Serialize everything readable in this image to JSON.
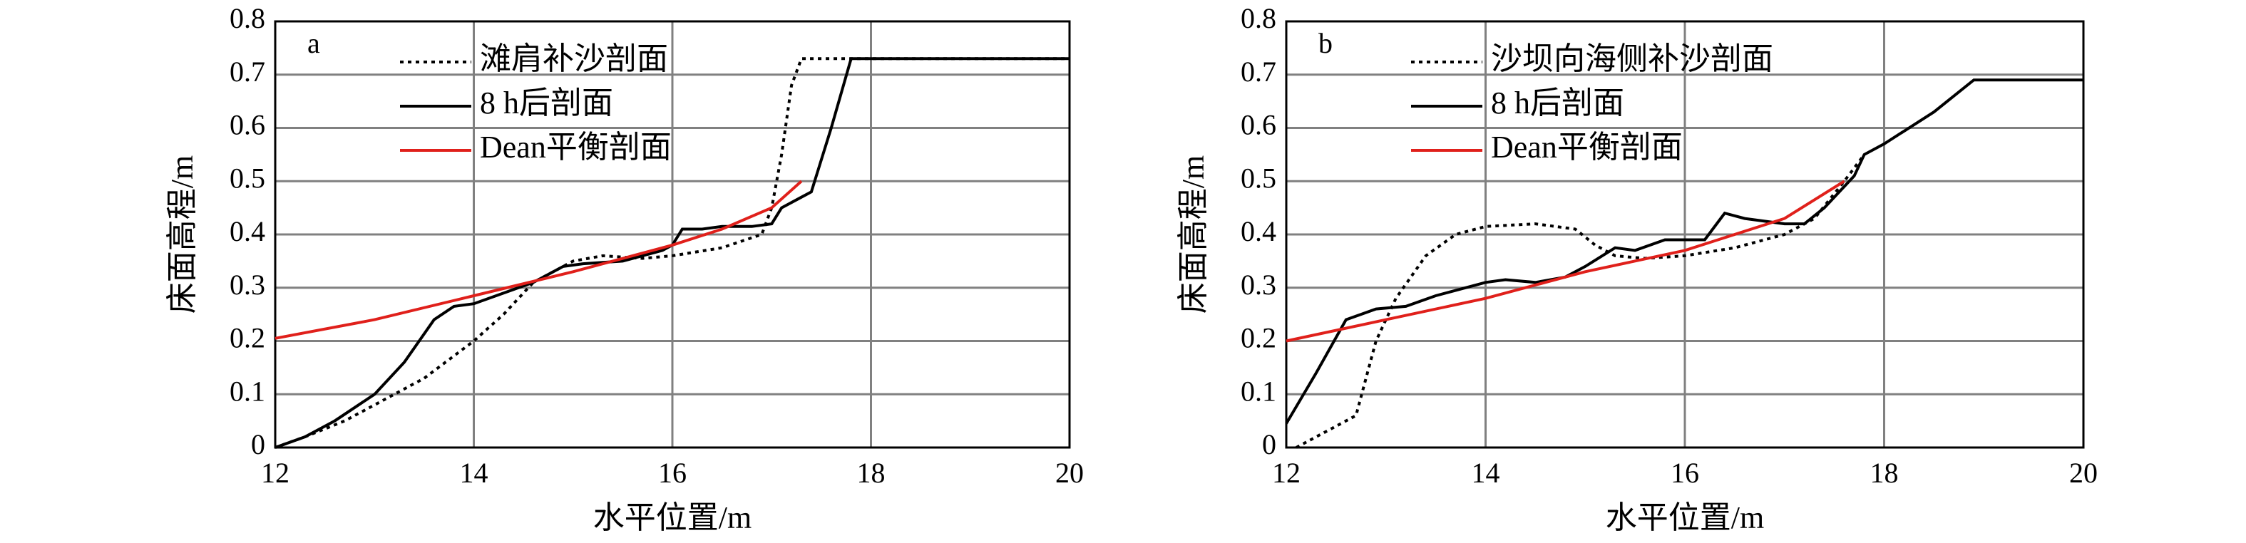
{
  "chart_data": [
    {
      "type": "line",
      "panel_label": "a",
      "xlabel": "水平位置/m",
      "ylabel": "床面高程/m",
      "xlim": [
        12,
        20
      ],
      "ylim": [
        0,
        0.8
      ],
      "xticks": [
        12,
        14,
        16,
        18,
        20
      ],
      "yticks": [
        0,
        0.1,
        0.2,
        0.3,
        0.4,
        0.5,
        0.6,
        0.7,
        0.8
      ],
      "grid": true,
      "series": [
        {
          "name": "滩肩补沙剖面",
          "color": "#000000",
          "dash": "dotted",
          "x": [
            12,
            12.3,
            12.7,
            13,
            13.5,
            14,
            14.3,
            14.6,
            15,
            15.3,
            15.7,
            16,
            16.5,
            16.9,
            17,
            17.1,
            17.2,
            17.3,
            20
          ],
          "values": [
            0,
            0.02,
            0.05,
            0.08,
            0.13,
            0.2,
            0.25,
            0.31,
            0.35,
            0.36,
            0.355,
            0.36,
            0.375,
            0.4,
            0.45,
            0.55,
            0.68,
            0.73,
            0.73
          ]
        },
        {
          "name": "8 h后剖面",
          "color": "#000000",
          "dash": "solid",
          "x": [
            12,
            12.3,
            12.6,
            13,
            13.3,
            13.6,
            13.8,
            14,
            14.3,
            14.6,
            14.9,
            15.1,
            15.5,
            15.9,
            16,
            16.1,
            16.3,
            16.5,
            16.8,
            17,
            17.1,
            17.3,
            17.4,
            17.6,
            17.8,
            20
          ],
          "values": [
            0,
            0.02,
            0.05,
            0.1,
            0.16,
            0.24,
            0.265,
            0.27,
            0.29,
            0.31,
            0.34,
            0.345,
            0.35,
            0.37,
            0.38,
            0.41,
            0.41,
            0.415,
            0.415,
            0.42,
            0.45,
            0.47,
            0.48,
            0.6,
            0.73,
            0.73
          ]
        },
        {
          "name": "Dean平衡剖面",
          "color": "#e0201b",
          "dash": "solid",
          "x": [
            12,
            13,
            14,
            15,
            16,
            16.5,
            17,
            17.3
          ],
          "values": [
            0.205,
            0.24,
            0.285,
            0.33,
            0.38,
            0.41,
            0.45,
            0.5
          ]
        }
      ]
    },
    {
      "type": "line",
      "panel_label": "b",
      "xlabel": "水平位置/m",
      "ylabel": "床面高程/m",
      "xlim": [
        12,
        20
      ],
      "ylim": [
        0,
        0.8
      ],
      "xticks": [
        12,
        14,
        16,
        18,
        20
      ],
      "yticks": [
        0,
        0.1,
        0.2,
        0.3,
        0.4,
        0.5,
        0.6,
        0.7,
        0.8
      ],
      "grid": true,
      "series": [
        {
          "name": "沙坝向海侧补沙剖面",
          "color": "#000000",
          "dash": "dotted",
          "x": [
            12.1,
            12.3,
            12.7,
            12.9,
            13.1,
            13.4,
            13.7,
            14,
            14.5,
            14.9,
            15.1,
            15.3,
            15.6,
            16,
            16.5,
            17,
            17.3,
            17.6,
            17.8
          ],
          "values": [
            0,
            0.02,
            0.06,
            0.2,
            0.28,
            0.36,
            0.4,
            0.415,
            0.42,
            0.41,
            0.38,
            0.36,
            0.355,
            0.36,
            0.375,
            0.4,
            0.43,
            0.5,
            0.55
          ]
        },
        {
          "name": "8 h后剖面",
          "color": "#000000",
          "dash": "solid",
          "x": [
            12,
            12.3,
            12.6,
            12.9,
            13.2,
            13.5,
            14,
            14.2,
            14.5,
            14.8,
            15,
            15.3,
            15.5,
            15.8,
            16.2,
            16.4,
            16.6,
            17,
            17.2,
            17.4,
            17.7,
            17.8,
            18,
            18.5,
            18.9,
            19.2,
            20
          ],
          "values": [
            0.045,
            0.14,
            0.24,
            0.26,
            0.265,
            0.285,
            0.31,
            0.315,
            0.31,
            0.32,
            0.34,
            0.375,
            0.37,
            0.39,
            0.39,
            0.44,
            0.43,
            0.42,
            0.42,
            0.45,
            0.51,
            0.55,
            0.57,
            0.63,
            0.69,
            0.69,
            0.69
          ]
        },
        {
          "name": "Dean平衡剖面",
          "color": "#e0201b",
          "dash": "solid",
          "x": [
            12,
            13,
            14,
            15,
            16,
            17,
            17.6
          ],
          "values": [
            0.2,
            0.24,
            0.28,
            0.33,
            0.37,
            0.43,
            0.5
          ]
        }
      ]
    }
  ]
}
